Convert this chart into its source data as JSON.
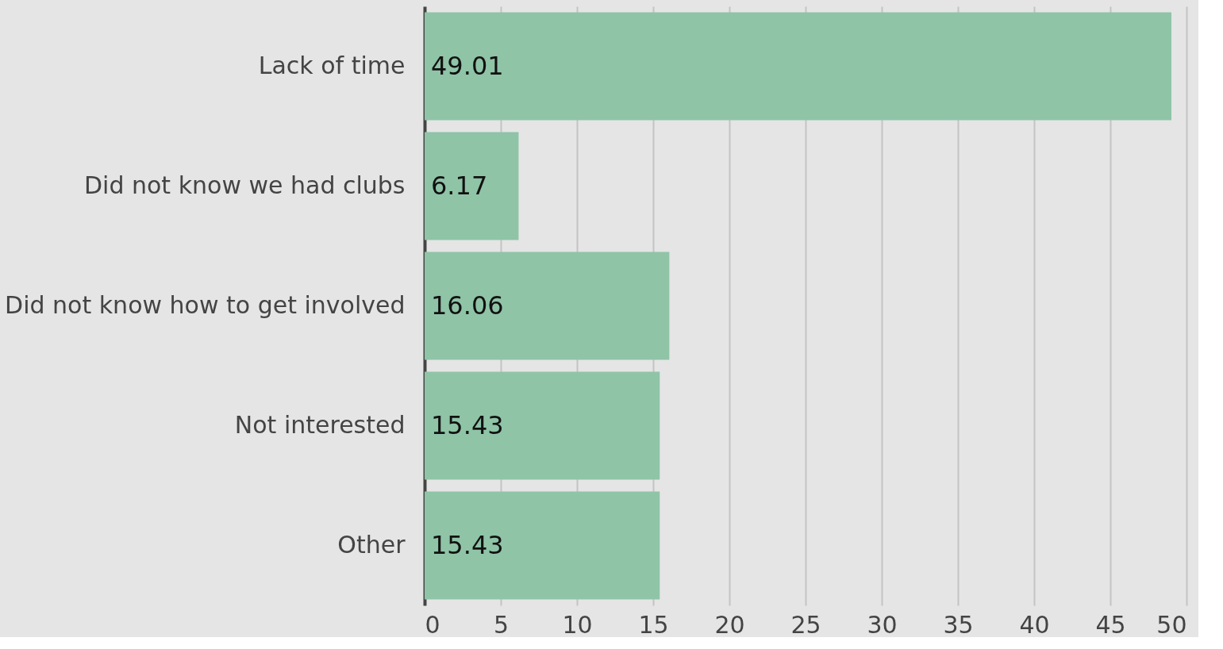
{
  "chart_data": {
    "type": "bar",
    "orientation": "horizontal",
    "categories": [
      "Lack of time",
      "Did not know we had clubs",
      "Did not know how to get involved",
      "Not interested",
      "Other"
    ],
    "values": [
      49.01,
      6.17,
      16.06,
      15.43,
      15.43
    ],
    "color": "#8fc4a7",
    "xlim": [
      0,
      50
    ],
    "xticks": [
      0,
      5,
      10,
      15,
      20,
      25,
      30,
      35,
      40,
      45,
      50
    ],
    "grid": "x",
    "data_labels": true
  }
}
